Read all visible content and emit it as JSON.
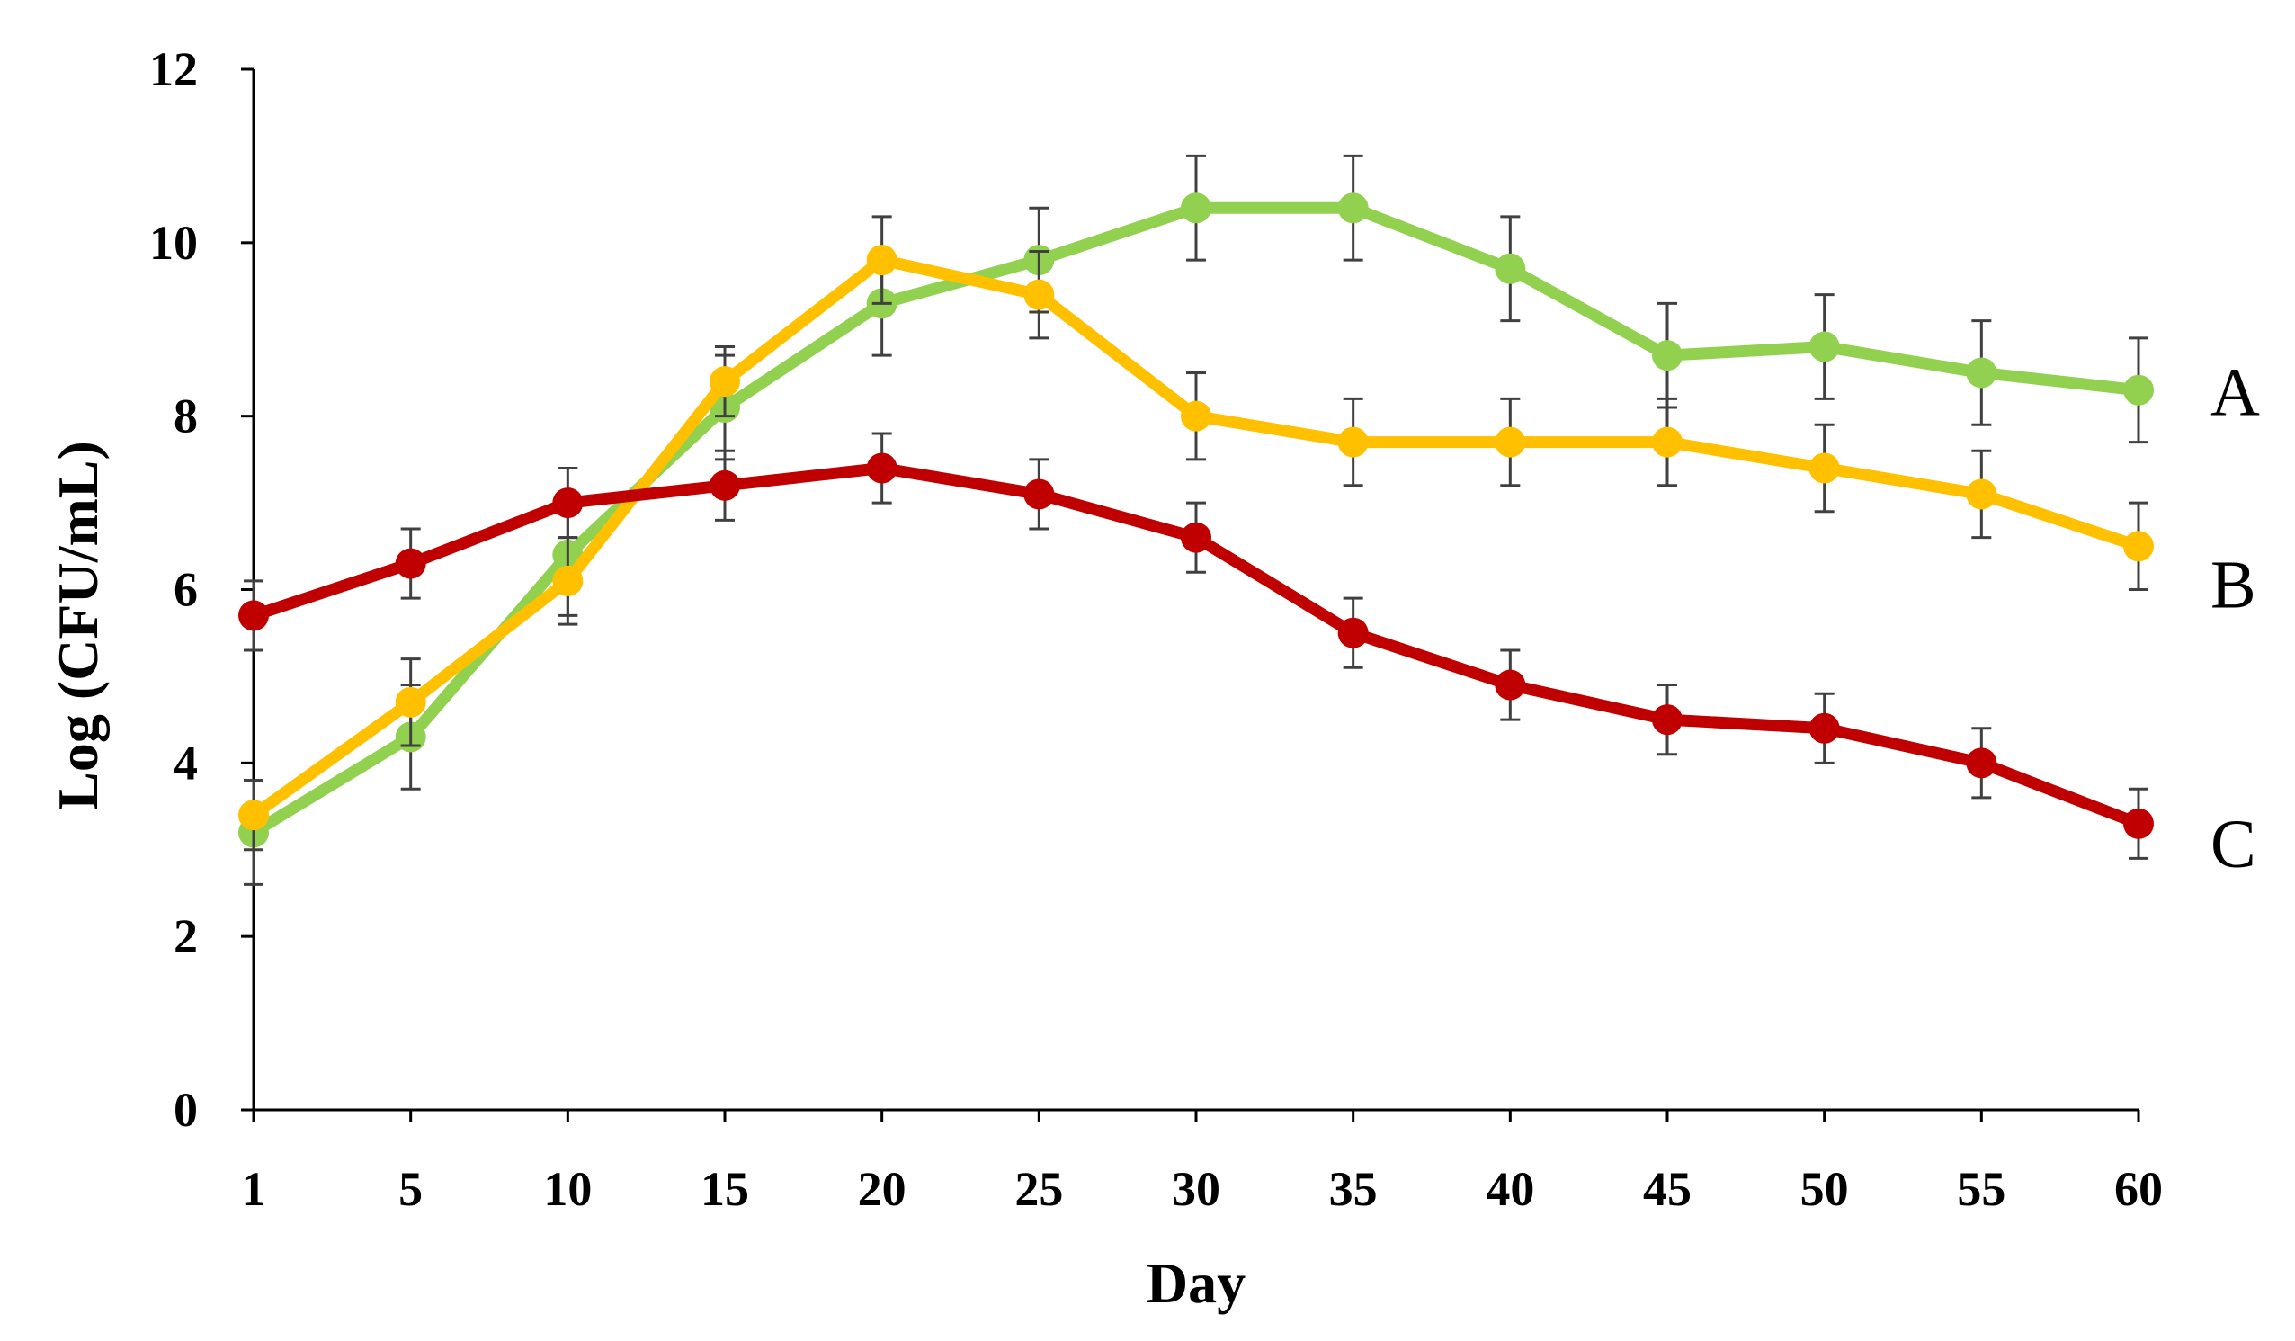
{
  "chart_data": {
    "type": "line",
    "title": "",
    "xlabel": "Day",
    "ylabel": "Log (CFU/mL)",
    "categories": [
      "1",
      "5",
      "10",
      "15",
      "20",
      "25",
      "30",
      "35",
      "40",
      "45",
      "50",
      "55",
      "60"
    ],
    "ylim": [
      0,
      12
    ],
    "yticks": [
      "0",
      "2",
      "4",
      "6",
      "8",
      "10",
      "12"
    ],
    "grid": false,
    "legend": "direct labels at right end of lines",
    "series": [
      {
        "name": "A",
        "color": "#92d050",
        "values": [
          3.2,
          4.3,
          6.4,
          8.1,
          9.3,
          9.8,
          10.4,
          10.4,
          9.7,
          8.7,
          8.8,
          8.5,
          8.3
        ],
        "errors": [
          0.6,
          0.6,
          0.7,
          0.6,
          0.6,
          0.6,
          0.6,
          0.6,
          0.6,
          0.6,
          0.6,
          0.6,
          0.6
        ]
      },
      {
        "name": "B",
        "color": "#ffc000",
        "values": [
          3.4,
          4.7,
          6.1,
          8.4,
          9.8,
          9.4,
          8.0,
          7.7,
          7.7,
          7.7,
          7.4,
          7.1,
          6.5
        ],
        "errors": [
          0.4,
          0.5,
          0.5,
          0.4,
          0.5,
          0.5,
          0.5,
          0.5,
          0.5,
          0.5,
          0.5,
          0.5,
          0.5
        ]
      },
      {
        "name": "C",
        "color": "#c00000",
        "values": [
          5.7,
          6.3,
          7.0,
          7.2,
          7.4,
          7.1,
          6.6,
          5.5,
          4.9,
          4.5,
          4.4,
          4.0,
          3.3
        ],
        "errors": [
          0.4,
          0.4,
          0.4,
          0.4,
          0.4,
          0.4,
          0.4,
          0.4,
          0.4,
          0.4,
          0.4,
          0.4,
          0.4
        ]
      }
    ]
  }
}
